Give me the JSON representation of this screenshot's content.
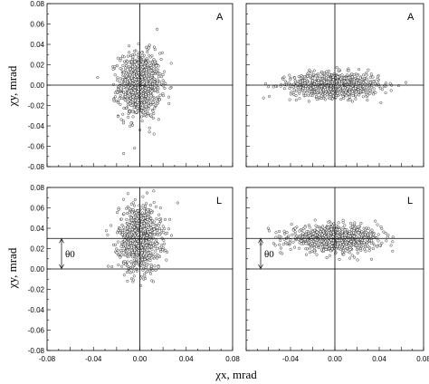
{
  "chart_data": [
    {
      "type": "scatter",
      "panel": "top-left",
      "panel_label": "A",
      "xlim": [
        -0.08,
        0.08
      ],
      "ylim": [
        -0.08,
        0.08
      ],
      "ylabel": "χy, mrad",
      "xlabel": "",
      "center": [
        0.0,
        0.0
      ],
      "spread": [
        0.009,
        0.016
      ],
      "n_points": 900,
      "ref_lines": {
        "x": [
          0.0
        ],
        "y": [
          0.0
        ]
      },
      "theta_marker": null
    },
    {
      "type": "scatter",
      "panel": "top-right",
      "panel_label": "A",
      "xlim": [
        -0.08,
        0.08
      ],
      "ylim": [
        -0.08,
        0.08
      ],
      "ylabel": "",
      "xlabel": "",
      "center": [
        0.0,
        0.0
      ],
      "spread": [
        0.02,
        0.006
      ],
      "n_points": 900,
      "ref_lines": {
        "x": [
          0.0
        ],
        "y": [
          0.0
        ]
      },
      "theta_marker": null
    },
    {
      "type": "scatter",
      "panel": "bottom-left",
      "panel_label": "L",
      "xlim": [
        -0.08,
        0.08
      ],
      "ylim": [
        -0.08,
        0.08
      ],
      "ylabel": "χy, mrad",
      "xlabel": "χx, mrad",
      "center": [
        0.0,
        0.03
      ],
      "spread": [
        0.009,
        0.016
      ],
      "n_points": 900,
      "ref_lines": {
        "x": [
          0.0
        ],
        "y": [
          0.0,
          0.03
        ]
      },
      "theta_marker": {
        "label": "θ0",
        "x": -0.072,
        "from": 0.0,
        "to": 0.03
      }
    },
    {
      "type": "scatter",
      "panel": "bottom-right",
      "panel_label": "L",
      "xlim": [
        -0.08,
        0.08
      ],
      "ylim": [
        -0.08,
        0.08
      ],
      "ylabel": "",
      "xlabel": "",
      "center": [
        0.0,
        0.03
      ],
      "spread": [
        0.02,
        0.006
      ],
      "n_points": 900,
      "ref_lines": {
        "x": [
          0.0
        ],
        "y": [
          0.0,
          0.03
        ]
      },
      "theta_marker": {
        "label": "θ0",
        "x": -0.072,
        "from": 0.0,
        "to": 0.03
      }
    }
  ],
  "ticks": {
    "y": [
      "0.08",
      "0.06",
      "0.04",
      "0.02",
      "0.00",
      "-0.02",
      "-0.04",
      "-0.06",
      "-0.08"
    ],
    "x_left": [
      "-0.08",
      "-0.04",
      "0.00",
      "0.04",
      "0.08"
    ],
    "x_right": [
      "-0.04",
      "0.00",
      "0.04",
      "0.08"
    ]
  }
}
